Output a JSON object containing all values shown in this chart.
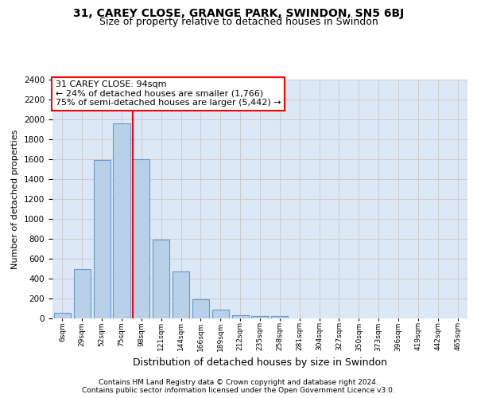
{
  "title1": "31, CAREY CLOSE, GRANGE PARK, SWINDON, SN5 6BJ",
  "title2": "Size of property relative to detached houses in Swindon",
  "xlabel": "Distribution of detached houses by size in Swindon",
  "ylabel": "Number of detached properties",
  "categories": [
    "6sqm",
    "29sqm",
    "52sqm",
    "75sqm",
    "98sqm",
    "121sqm",
    "144sqm",
    "166sqm",
    "189sqm",
    "212sqm",
    "235sqm",
    "258sqm",
    "281sqm",
    "304sqm",
    "327sqm",
    "350sqm",
    "373sqm",
    "396sqm",
    "419sqm",
    "442sqm",
    "465sqm"
  ],
  "values": [
    60,
    500,
    1590,
    1960,
    1600,
    790,
    470,
    195,
    90,
    35,
    28,
    22,
    0,
    0,
    0,
    0,
    0,
    0,
    0,
    0,
    0
  ],
  "bar_color": "#b8d0e8",
  "bar_edgecolor": "#6699cc",
  "vline_x_idx": 4,
  "vline_color": "red",
  "annotation_text": "31 CAREY CLOSE: 94sqm\n← 24% of detached houses are smaller (1,766)\n75% of semi-detached houses are larger (5,442) →",
  "annotation_box_color": "white",
  "annotation_box_edgecolor": "red",
  "ylim": [
    0,
    2400
  ],
  "yticks": [
    0,
    200,
    400,
    600,
    800,
    1000,
    1200,
    1400,
    1600,
    1800,
    2000,
    2200,
    2400
  ],
  "grid_color": "#cccccc",
  "bg_color": "#dce8f5",
  "footer1": "Contains HM Land Registry data © Crown copyright and database right 2024.",
  "footer2": "Contains public sector information licensed under the Open Government Licence v3.0.",
  "title1_fontsize": 10,
  "title2_fontsize": 9,
  "xlabel_fontsize": 9,
  "ylabel_fontsize": 8,
  "annotation_fontsize": 8,
  "footer_fontsize": 6.5
}
